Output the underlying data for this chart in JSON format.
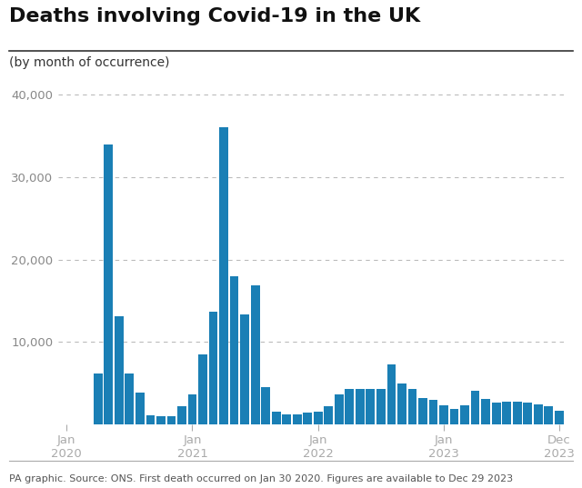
{
  "title": "Deaths involving Covid-19 in the UK",
  "subtitle": "(by month of occurrence)",
  "caption": "PA graphic. Source: ONS. First death occurred on Jan 30 2020. Figures are available to Dec 29 2023",
  "bar_color": "#1a7fb5",
  "background_color": "#ffffff",
  "ylim": [
    0,
    42000
  ],
  "yticks": [
    10000,
    20000,
    30000,
    40000
  ],
  "monthly_deaths": [
    0,
    0,
    3,
    6200,
    34000,
    13100,
    6200,
    3900,
    1100,
    1000,
    1050,
    2200,
    3700,
    8500,
    13700,
    36000,
    18000,
    13300,
    16900,
    4500,
    1600,
    1200,
    1200,
    1400,
    1550,
    2200,
    3700,
    4300,
    4350,
    4300,
    4300,
    7300,
    4950,
    4300,
    3200,
    3050,
    2350,
    1900,
    2350,
    4100,
    3150,
    2700,
    2750,
    2750,
    2650,
    2450,
    2200,
    1650
  ],
  "x_tick_positions_months": [
    0,
    12,
    24,
    36,
    47
  ],
  "x_tick_labels": [
    "Jan\n2020",
    "Jan\n2021",
    "Jan\n2022",
    "Jan\n2023",
    "Dec\n2023"
  ]
}
